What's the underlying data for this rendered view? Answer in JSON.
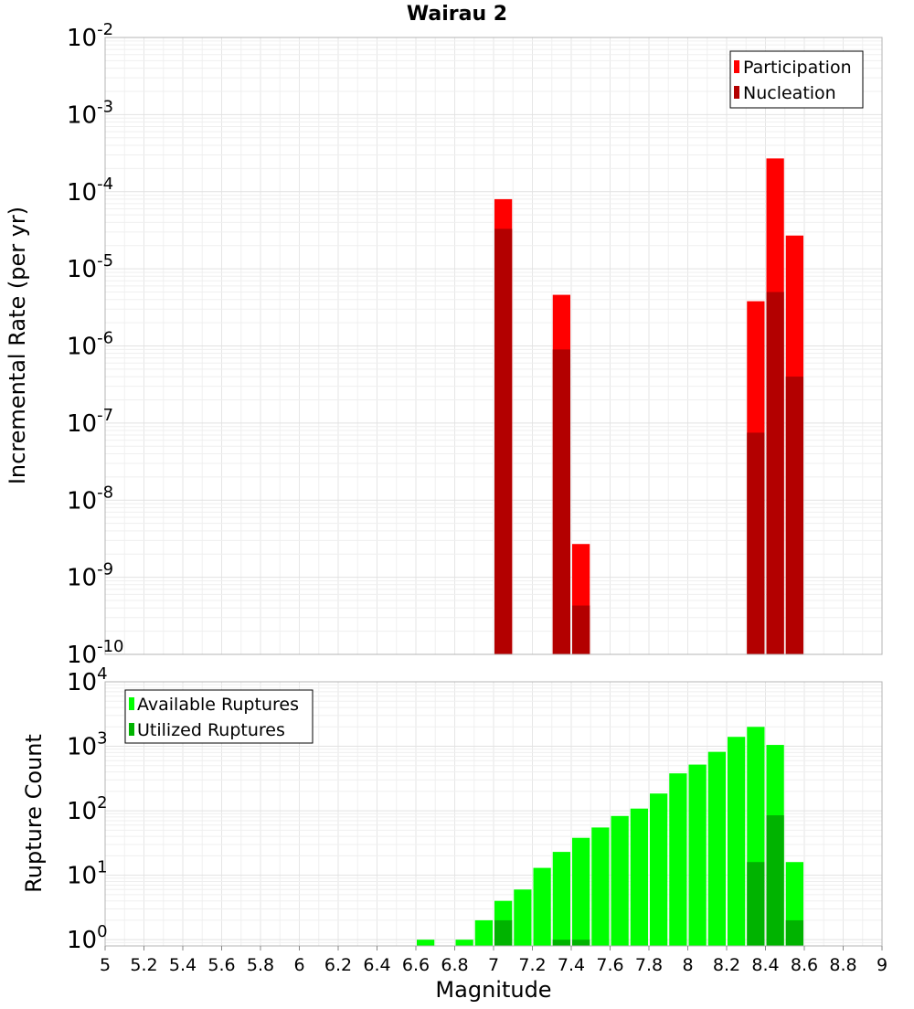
{
  "chart_data": [
    {
      "type": "bar",
      "title": "Wairau 2",
      "xlabel": "",
      "ylabel": "Incremental Rate (per yr)",
      "y_scale": "log",
      "ylim": [
        1e-10,
        0.01
      ],
      "xlim": [
        5,
        9
      ],
      "bin_width": 0.1,
      "grid": true,
      "legend_position": "top-right",
      "y_tick_labels": [
        {
          "base": "10",
          "exp": "-2"
        },
        {
          "base": "10",
          "exp": "-3"
        },
        {
          "base": "10",
          "exp": "-4"
        },
        {
          "base": "10",
          "exp": "-5"
        },
        {
          "base": "10",
          "exp": "-6"
        },
        {
          "base": "10",
          "exp": "-7"
        },
        {
          "base": "10",
          "exp": "-8"
        },
        {
          "base": "10",
          "exp": "-9"
        },
        {
          "base": "10",
          "exp": "-10"
        }
      ],
      "series": [
        {
          "name": "Participation",
          "color": "#ff0000",
          "points": [
            {
              "x": 7.05,
              "y": 8e-05
            },
            {
              "x": 7.35,
              "y": 4.6e-06
            },
            {
              "x": 7.45,
              "y": 2.7e-09
            },
            {
              "x": 8.35,
              "y": 3.8e-06
            },
            {
              "x": 8.45,
              "y": 0.00027
            },
            {
              "x": 8.55,
              "y": 2.7e-05
            }
          ]
        },
        {
          "name": "Nucleation",
          "color": "#b30000",
          "points": [
            {
              "x": 7.05,
              "y": 3.3e-05
            },
            {
              "x": 7.35,
              "y": 9e-07
            },
            {
              "x": 7.45,
              "y": 4.3e-10
            },
            {
              "x": 8.35,
              "y": 7.5e-08
            },
            {
              "x": 8.45,
              "y": 5e-06
            },
            {
              "x": 8.55,
              "y": 4e-07
            }
          ]
        }
      ]
    },
    {
      "type": "bar",
      "title": "",
      "xlabel": "Magnitude",
      "ylabel": "Rupture Count",
      "y_scale": "log",
      "ylim": [
        0.8,
        10000
      ],
      "xlim": [
        5,
        9
      ],
      "bin_width": 0.1,
      "grid": true,
      "legend_position": "top-left",
      "x_tick_labels": [
        "5",
        "5.2",
        "5.4",
        "5.6",
        "5.8",
        "6",
        "6.2",
        "6.4",
        "6.6",
        "6.8",
        "7",
        "7.2",
        "7.4",
        "7.6",
        "7.8",
        "8",
        "8.2",
        "8.4",
        "8.6",
        "8.8",
        "9"
      ],
      "y_tick_labels": [
        {
          "base": "10",
          "exp": "4"
        },
        {
          "base": "10",
          "exp": "3"
        },
        {
          "base": "10",
          "exp": "2"
        },
        {
          "base": "10",
          "exp": "1"
        },
        {
          "base": "10",
          "exp": "0"
        }
      ],
      "series": [
        {
          "name": "Available Ruptures",
          "color": "#00ff00",
          "points": [
            {
              "x": 6.65,
              "y": 1
            },
            {
              "x": 6.85,
              "y": 1
            },
            {
              "x": 6.95,
              "y": 2
            },
            {
              "x": 7.05,
              "y": 4
            },
            {
              "x": 7.15,
              "y": 6
            },
            {
              "x": 7.25,
              "y": 13
            },
            {
              "x": 7.35,
              "y": 23
            },
            {
              "x": 7.45,
              "y": 38
            },
            {
              "x": 7.55,
              "y": 55
            },
            {
              "x": 7.65,
              "y": 83
            },
            {
              "x": 7.75,
              "y": 108
            },
            {
              "x": 7.85,
              "y": 185
            },
            {
              "x": 7.95,
              "y": 380
            },
            {
              "x": 8.05,
              "y": 520
            },
            {
              "x": 8.15,
              "y": 820
            },
            {
              "x": 8.25,
              "y": 1400
            },
            {
              "x": 8.35,
              "y": 2000
            },
            {
              "x": 8.45,
              "y": 1050
            },
            {
              "x": 8.55,
              "y": 16
            }
          ]
        },
        {
          "name": "Utilized Ruptures",
          "color": "#00b300",
          "points": [
            {
              "x": 7.05,
              "y": 2
            },
            {
              "x": 7.35,
              "y": 1
            },
            {
              "x": 7.45,
              "y": 1
            },
            {
              "x": 8.35,
              "y": 16
            },
            {
              "x": 8.45,
              "y": 85
            },
            {
              "x": 8.55,
              "y": 2
            }
          ]
        }
      ]
    }
  ]
}
